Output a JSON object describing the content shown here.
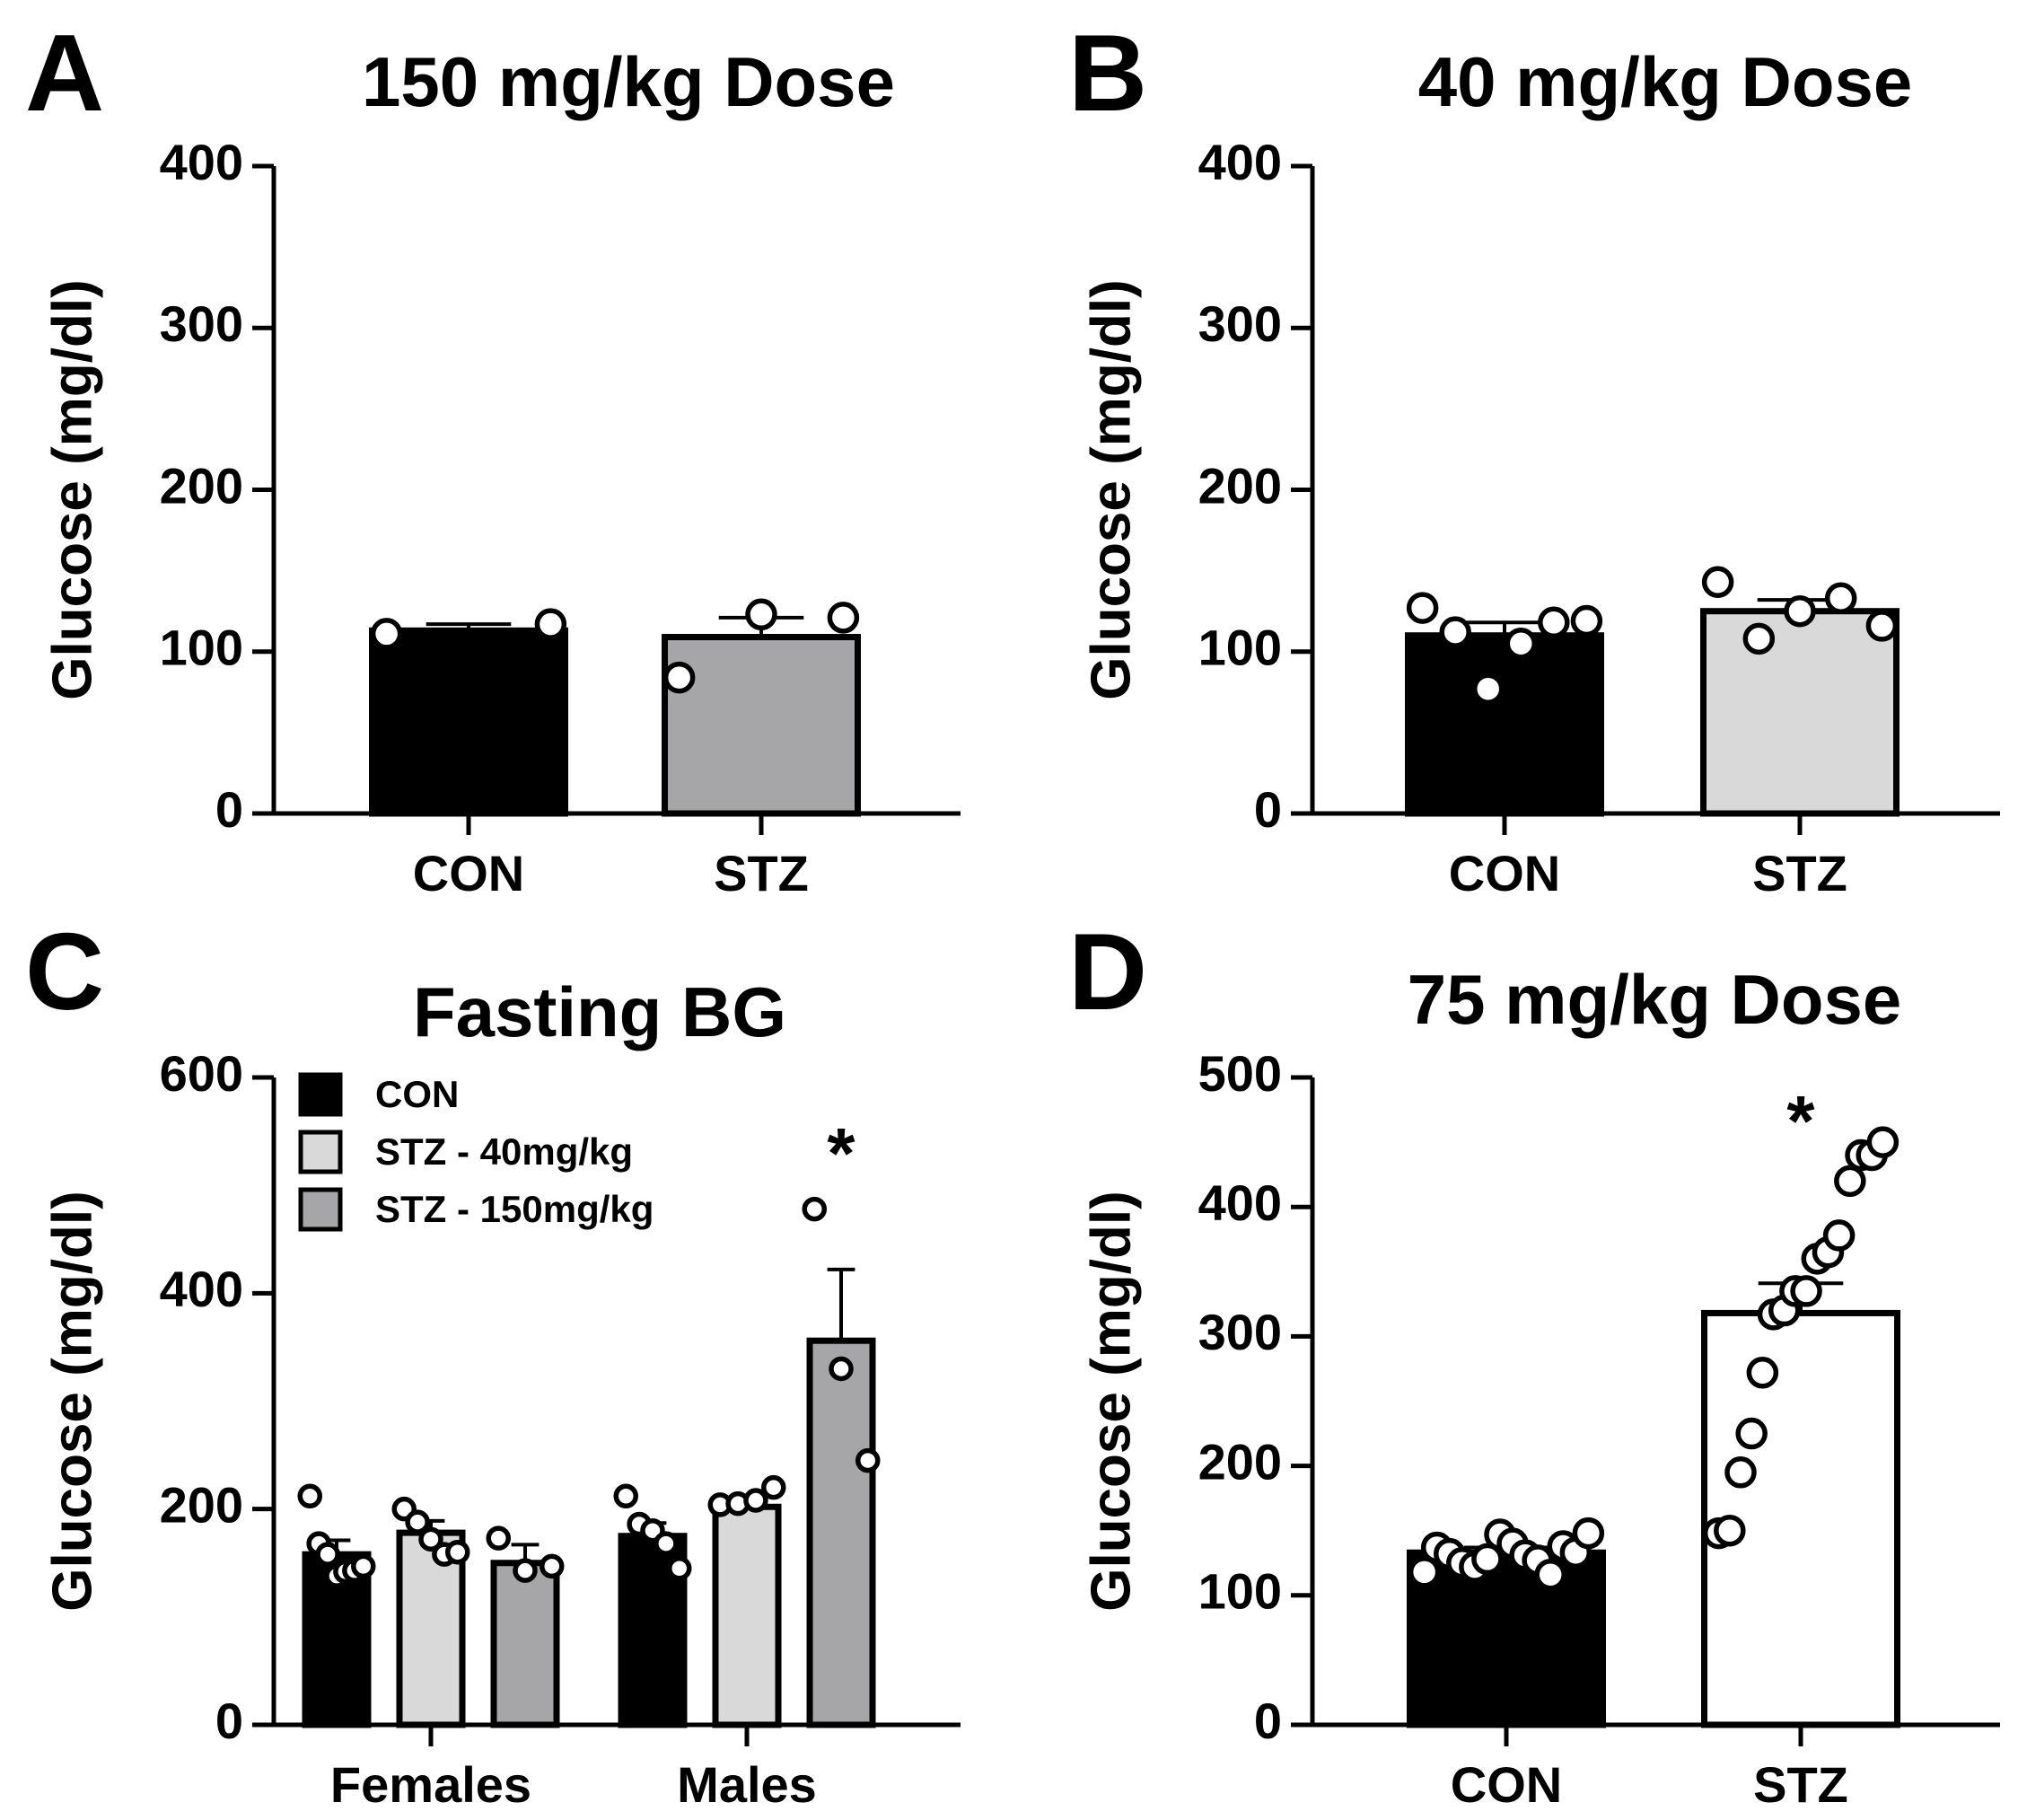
{
  "colors": {
    "con": "#000000",
    "stz_40": "#d9d9d9",
    "stz_150": "#a6a6a8",
    "stz_75": "#ffffff",
    "outline": "#000000"
  },
  "chart_data": [
    {
      "id": "A",
      "panel_letter": "A",
      "type": "bar",
      "title": "150 mg/kg Dose",
      "ylabel": "Glucose (mg/dl)",
      "xlabel": "",
      "ylim": [
        0,
        400
      ],
      "yticks": [
        "0",
        "100",
        "200",
        "300",
        "400"
      ],
      "categories": [
        "CON",
        "STZ"
      ],
      "bars": [
        {
          "category": "CON",
          "value": 113,
          "sem": 4,
          "fill": "#000000",
          "points": [
            111,
            117
          ]
        },
        {
          "category": "STZ",
          "value": 109,
          "sem": 12,
          "fill": "#a6a6a8",
          "points": [
            84,
            123,
            121
          ]
        }
      ],
      "annotations": [],
      "grid": false
    },
    {
      "id": "B",
      "panel_letter": "B",
      "type": "bar",
      "title": "40 mg/kg Dose",
      "ylabel": "Glucose (mg/dl)",
      "xlabel": "",
      "ylim": [
        0,
        400
      ],
      "yticks": [
        "0",
        "100",
        "200",
        "300",
        "400"
      ],
      "categories": [
        "CON",
        "STZ"
      ],
      "bars": [
        {
          "category": "CON",
          "value": 110,
          "sem": 8,
          "fill": "#000000",
          "points": [
            127,
            112,
            77,
            105,
            118,
            119
          ]
        },
        {
          "category": "STZ",
          "value": 125,
          "sem": 7,
          "fill": "#d9d9d9",
          "points": [
            143,
            108,
            125,
            133,
            116
          ]
        }
      ],
      "annotations": [],
      "grid": false
    },
    {
      "id": "C",
      "panel_letter": "C",
      "type": "bar",
      "title": "Fasting BG",
      "ylabel": "Glucose (mg/dl)",
      "xlabel": "",
      "ylim": [
        0,
        600
      ],
      "yticks": [
        "0",
        "200",
        "400",
        "600"
      ],
      "categories": [
        "Females",
        "Males"
      ],
      "legend": {
        "placement": "top-left",
        "entries": [
          {
            "label": "CON",
            "fill": "#000000"
          },
          {
            "label": "STZ - 40mg/kg",
            "fill": "#d9d9d9"
          },
          {
            "label": "STZ - 150mg/kg",
            "fill": "#a6a6a8"
          }
        ]
      },
      "series": [
        {
          "name": "CON",
          "fill": "#000000",
          "values": [
            158,
            175
          ],
          "sem": [
            13,
            12
          ],
          "points": [
            [
              212,
              168,
              158,
              138,
              142,
              143,
              147
            ],
            [
              212,
              186,
              180,
              168,
              145
            ]
          ]
        },
        {
          "name": "STZ - 40mg/kg",
          "fill": "#d9d9d9",
          "values": [
            178,
            202
          ],
          "sem": [
            11,
            6
          ],
          "points": [
            [
              200,
              188,
              172,
              158,
              160
            ],
            [
              204,
              205,
              208,
              220
            ]
          ]
        },
        {
          "name": "STZ - 150mg/kg",
          "fill": "#a6a6a8",
          "values": [
            150,
            356
          ],
          "sem": [
            17,
            66
          ],
          "points": [
            [
              173,
              143,
              147
            ],
            [
              478,
              330,
              245
            ]
          ]
        }
      ],
      "annotations": [
        {
          "text": "*",
          "category": "Males",
          "series": "STZ - 150mg/kg",
          "y": 540
        }
      ],
      "grid": false
    },
    {
      "id": "D",
      "panel_letter": "D",
      "type": "bar",
      "title": "75 mg/kg Dose",
      "ylabel": "Glucose (mg/dl)",
      "xlabel": "",
      "ylim": [
        0,
        500
      ],
      "yticks": [
        "0",
        "100",
        "200",
        "300",
        "400",
        "500"
      ],
      "categories": [
        "CON",
        "STZ"
      ],
      "bars": [
        {
          "category": "CON",
          "value": 133,
          "sem": 4,
          "fill": "#000000",
          "points": [
            118,
            137,
            132,
            125,
            122,
            128,
            147,
            140,
            131,
            127,
            116,
            138,
            133,
            148
          ]
        },
        {
          "category": "STZ",
          "value": 318,
          "sem": 23,
          "fill": "#ffffff",
          "points": [
            148,
            150,
            195,
            225,
            272,
            317,
            320,
            335,
            335,
            360,
            365,
            378,
            420,
            440,
            440,
            450
          ]
        }
      ],
      "annotations": [
        {
          "text": "*",
          "category": "STZ",
          "y": 475
        }
      ],
      "grid": false
    }
  ]
}
